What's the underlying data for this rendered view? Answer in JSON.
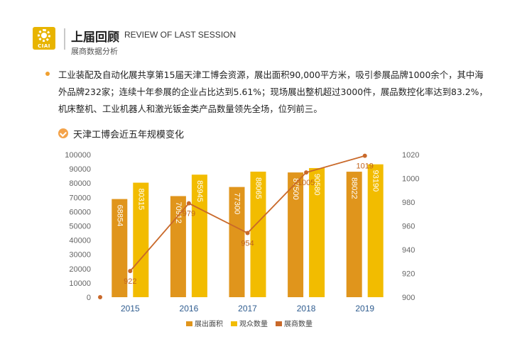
{
  "header": {
    "logo_text": "CIAI",
    "title_cn": "上届回顾",
    "title_en": "REVIEW OF LAST SESSION",
    "subtitle": "展商数据分析"
  },
  "intro": {
    "text": "工业装配及自动化展共享第15届天津工博会资源，展出面积90,000平方米，吸引参展品牌1000余个，其中海外品牌232家；连续十年参展的企业占比达到5.61%；现场展出整机超过3000件，展品数控化率达到83.2%，机床整机、工业机器人和激光钣金类产品数量领先全场，位列前三。"
  },
  "chart_title": "天津工博会近五年规模变化",
  "colors": {
    "accent": "#e8b400",
    "area_bar": "#e0951c",
    "visitor_bar": "#f2bc00",
    "exhibitor_line": "#c9692a",
    "axis_text": "#2f5c8f"
  },
  "chart_data": {
    "type": "bar",
    "categories": [
      "2015",
      "2016",
      "2017",
      "2018",
      "2019"
    ],
    "series": [
      {
        "name": "展出面积",
        "type": "bar",
        "axis": "left",
        "values": [
          68854,
          70912,
          77300,
          87500,
          88022
        ]
      },
      {
        "name": "观众数量",
        "type": "bar",
        "axis": "left",
        "values": [
          80315,
          85945,
          88065,
          90580,
          93190
        ]
      },
      {
        "name": "展商数量",
        "type": "line",
        "axis": "right",
        "values": [
          922,
          979,
          954,
          1005,
          1019
        ]
      }
    ],
    "ylim_left": [
      0,
      100000
    ],
    "yticks_left": [
      "0",
      "10000",
      "20000",
      "30000",
      "40000",
      "50000",
      "60000",
      "70000",
      "80000",
      "90000",
      "100000"
    ],
    "ylim_right": [
      900,
      1020
    ],
    "yticks_right": [
      "900",
      "920",
      "940",
      "960",
      "980",
      "1000",
      "1020"
    ],
    "grid": false,
    "legend_position": "bottom-center"
  }
}
